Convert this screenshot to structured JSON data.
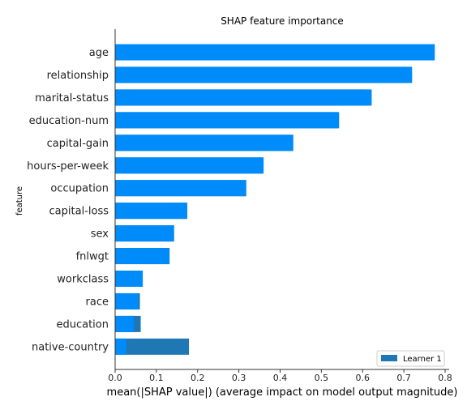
{
  "chart_data": {
    "type": "bar",
    "orientation": "horizontal",
    "title": "SHAP feature importance",
    "xlabel": "mean(|SHAP value|) (average impact on model output magnitude)",
    "ylabel": "feature",
    "xlim": [
      0,
      0.8
    ],
    "xticks": [
      "0.0",
      "0.1",
      "0.2",
      "0.3",
      "0.4",
      "0.5",
      "0.6",
      "0.7",
      "0.8"
    ],
    "legend_position": "bottom-right",
    "categories": [
      "age",
      "relationship",
      "marital-status",
      "education-num",
      "capital-gain",
      "hours-per-week",
      "occupation",
      "capital-loss",
      "sex",
      "fnlwgt",
      "workclass",
      "race",
      "education",
      "native-country"
    ],
    "series": [
      {
        "name": "Learner 1",
        "color": "#1f77b4",
        "values": [
          0.765,
          0.711,
          0.611,
          0.54,
          0.43,
          0.358,
          0.317,
          0.174,
          0.143,
          0.132,
          0.067,
          0.06,
          0.062,
          0.179
        ]
      },
      {
        "name": "",
        "color": "#008bfb",
        "values": [
          0.775,
          0.72,
          0.622,
          0.543,
          0.432,
          0.36,
          0.318,
          0.175,
          0.142,
          0.131,
          0.067,
          0.056,
          0.045,
          0.027
        ]
      }
    ]
  }
}
